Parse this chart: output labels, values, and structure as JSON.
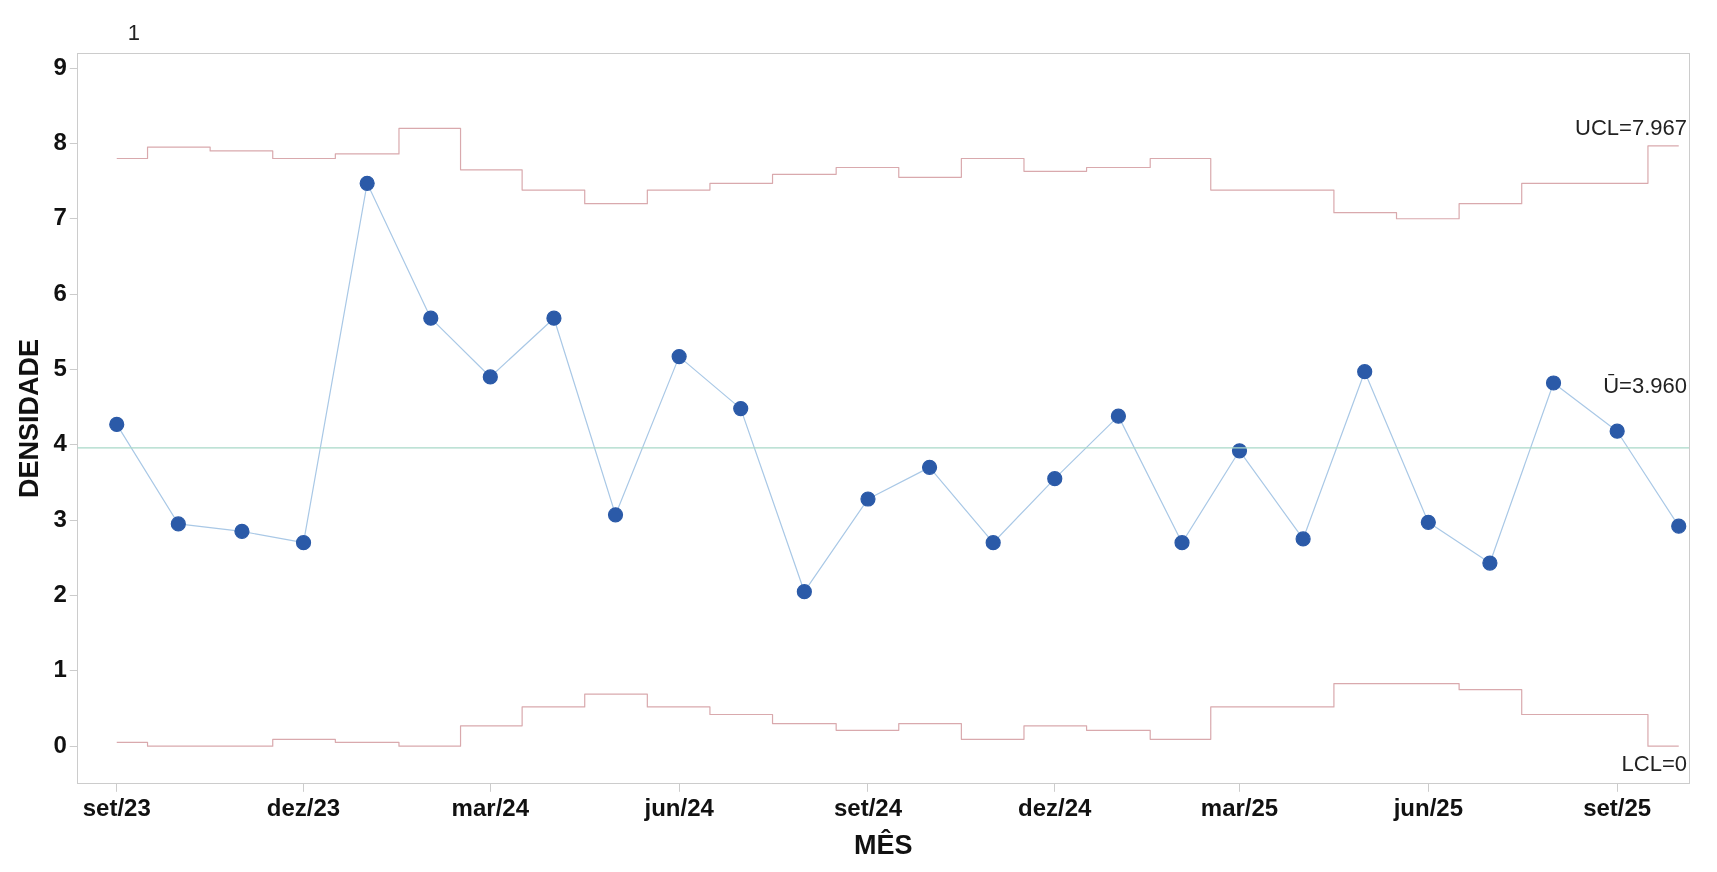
{
  "chart_data": {
    "type": "line",
    "xlabel": "MÊS",
    "ylabel": "DENSIDADE",
    "x": [
      "2023-09",
      "2023-10",
      "2023-11",
      "2023-12",
      "2024-01",
      "2024-02",
      "2024-03",
      "2024-04",
      "2024-05",
      "2024-06",
      "2024-07",
      "2024-08",
      "2024-09",
      "2024-10",
      "2024-11",
      "2024-12",
      "2025-01",
      "2025-02",
      "2025-03",
      "2025-04",
      "2025-05",
      "2025-06",
      "2025-07",
      "2025-08",
      "2025-09",
      "2025-10"
    ],
    "series": [
      {
        "color": "#2b5aa8",
        "marker": "circle",
        "values": [
          4.27,
          2.95,
          2.85,
          2.7,
          7.47,
          5.68,
          4.9,
          5.68,
          3.07,
          5.17,
          4.48,
          2.05,
          3.28,
          3.7,
          2.7,
          3.55,
          4.38,
          2.7,
          3.92,
          2.75,
          4.97,
          2.97,
          2.43,
          4.82,
          4.18,
          2.92
        ]
      },
      {
        "type": "step",
        "name": "UCL=7.967",
        "color": "#d9a9ad",
        "marker": "none",
        "values": [
          7.8,
          7.95,
          7.9,
          7.8,
          7.86,
          8.2,
          7.65,
          7.38,
          7.2,
          7.38,
          7.47,
          7.59,
          7.68,
          7.55,
          7.8,
          7.63,
          7.68,
          7.8,
          7.38,
          7.38,
          7.08,
          7.0,
          7.2,
          7.47,
          7.47,
          7.967
        ]
      },
      {
        "type": "step",
        "name": "LCL=0",
        "color": "#d9a9ad",
        "marker": "none",
        "values": [
          0.05,
          0,
          0,
          0.09,
          0.05,
          0,
          0.27,
          0.52,
          0.69,
          0.52,
          0.42,
          0.3,
          0.21,
          0.3,
          0.09,
          0.27,
          0.21,
          0.09,
          0.52,
          0.52,
          0.83,
          0.83,
          0.75,
          0.42,
          0.42,
          0
        ]
      }
    ],
    "ref_lines": [
      {
        "axis": "y",
        "value": 3.96,
        "label": "Ū=3.960",
        "color": "#a8d8c8"
      }
    ],
    "annotations": [
      "1"
    ],
    "xlim": [
      "2023-08-13",
      "2025-10-06"
    ],
    "xticks": [
      {
        "value": "2023-09",
        "label": "set/23"
      },
      {
        "value": "2023-12",
        "label": "dez/23"
      },
      {
        "value": "2024-03",
        "label": "mar/24"
      },
      {
        "value": "2024-06",
        "label": "jun/24"
      },
      {
        "value": "2024-09",
        "label": "set/24"
      },
      {
        "value": "2024-12",
        "label": "dez/24"
      },
      {
        "value": "2025-03",
        "label": "mar/25"
      },
      {
        "value": "2025-06",
        "label": "jun/25"
      },
      {
        "value": "2025-09",
        "label": "set/25"
      }
    ],
    "ylim": [
      -0.5,
      9.2
    ],
    "yticks": [
      0,
      1,
      2,
      3,
      4,
      5,
      6,
      7,
      8,
      9
    ],
    "grid": false,
    "legend": false
  }
}
